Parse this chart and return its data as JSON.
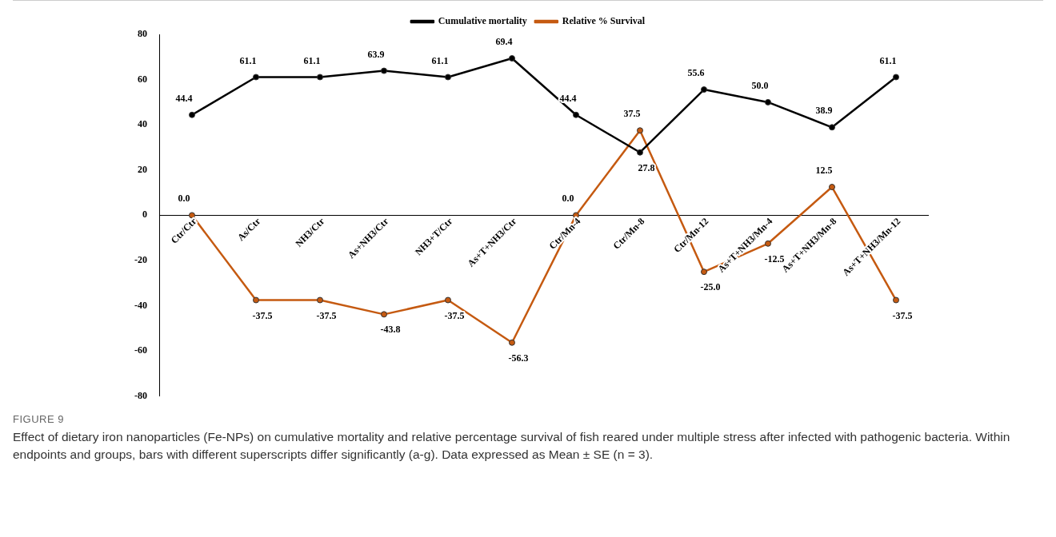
{
  "chart_data": {
    "type": "line",
    "categories": [
      "Ctr/Ctr",
      "As/Ctr",
      "NH3/Ctr",
      "As+NH3/Ctr",
      "NH3+T/Ctr",
      "As+T+NH3/Ctr",
      "Ctr/Mn-4",
      "Ctr/Mn-8",
      "Ctr/Mn-12",
      "As+T+NH3/Mn-4",
      "As+T+NH3/Mn-8",
      "As+T+NH3/Mn-12"
    ],
    "series": [
      {
        "name": "Cumulative mortality",
        "color": "#000000",
        "values": [
          44.4,
          61.1,
          61.1,
          63.9,
          61.1,
          69.4,
          44.4,
          27.8,
          55.6,
          50.0,
          38.9,
          61.1
        ],
        "value_labels": [
          "44.4",
          "61.1",
          "61.1",
          "63.9",
          "61.1",
          "69.4",
          "44.4",
          "27.8",
          "55.6",
          "50.0",
          "38.9",
          "61.1"
        ]
      },
      {
        "name": "Relative % Survival",
        "color": "#c55a11",
        "values": [
          0.0,
          -37.5,
          -37.5,
          -43.8,
          -37.5,
          -56.3,
          0.0,
          37.5,
          -25.0,
          -12.5,
          12.5,
          -37.5
        ],
        "value_labels": [
          "0.0",
          "-37.5",
          "-37.5",
          "-43.8",
          "-37.5",
          "-56.3",
          "0.0",
          "37.5",
          "-25.0",
          "-12.5",
          "12.5",
          "-37.5"
        ]
      }
    ],
    "ylim": [
      -80,
      80
    ],
    "yticks": [
      -80,
      -60,
      -40,
      -20,
      0,
      20,
      40,
      60,
      80
    ],
    "grid": false,
    "legend": "top",
    "marker": "circle",
    "line_style": "solid",
    "annotations": [
      "FIGURE 9",
      "Effect of dietary iron nanoparticles (Fe-NPs) on cumulative mortality and relative percentage survival of fish reared under multiple stress after infected with pathogenic bacteria. Within endpoints and groups, bars with different superscripts differ significantly (a-g). Data expressed as Mean ± SE (n = 3)."
    ]
  }
}
